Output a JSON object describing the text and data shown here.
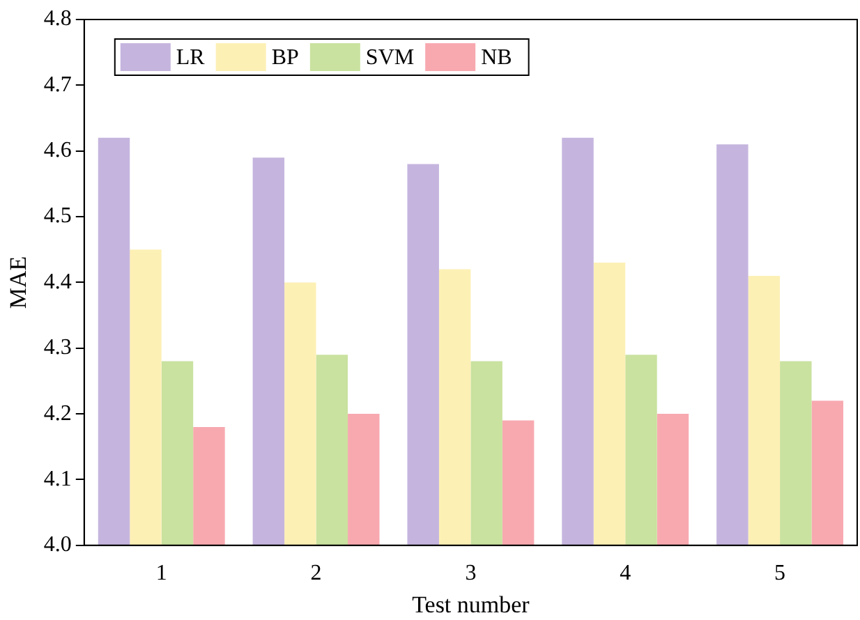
{
  "chart_data": {
    "type": "bar",
    "xlabel": "Test number",
    "ylabel": "MAE",
    "categories": [
      "1",
      "2",
      "3",
      "4",
      "5"
    ],
    "series": [
      {
        "name": "LR",
        "color": "#c5b5de",
        "values": [
          4.62,
          4.59,
          4.58,
          4.62,
          4.61
        ]
      },
      {
        "name": "BP",
        "color": "#fdf0b5",
        "values": [
          4.45,
          4.4,
          4.42,
          4.43,
          4.41
        ]
      },
      {
        "name": "SVM",
        "color": "#c9e29f",
        "values": [
          4.28,
          4.29,
          4.28,
          4.29,
          4.28
        ]
      },
      {
        "name": "NB",
        "color": "#f8a9b0",
        "values": [
          4.18,
          4.2,
          4.19,
          4.2,
          4.22
        ]
      }
    ],
    "ylim": [
      4.0,
      4.8
    ],
    "yticks": [
      {
        "value": 4.0,
        "label": "4.0"
      },
      4.1,
      4.2,
      4.3,
      4.4,
      4.5,
      4.6,
      4.7,
      4.8
    ],
    "grid": false,
    "legend": "top left"
  }
}
